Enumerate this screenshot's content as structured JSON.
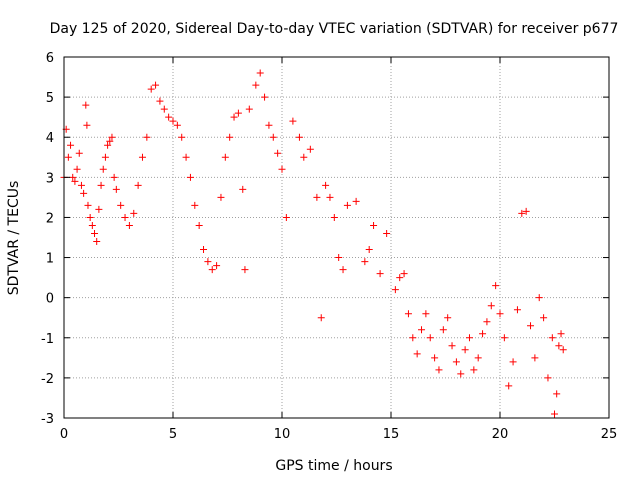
{
  "chart_data": {
    "type": "scatter",
    "title": "Day 125 of 2020, Sidereal Day-to-day VTEC variation (SDTVAR) for receiver p677",
    "xlabel": "GPS time / hours",
    "ylabel": "SDTVAR / TECUs",
    "xlim": [
      0,
      25
    ],
    "ylim": [
      -3,
      6
    ],
    "xticks": [
      0,
      5,
      10,
      15,
      20,
      25
    ],
    "yticks": [
      -3,
      -2,
      -1,
      0,
      1,
      2,
      3,
      4,
      5,
      6
    ],
    "grid": true,
    "marker": "plus",
    "color": "#ff0000",
    "series": [
      {
        "name": "p677",
        "points": [
          [
            0.0,
            3.0
          ],
          [
            0.1,
            4.2
          ],
          [
            0.2,
            3.5
          ],
          [
            0.3,
            3.8
          ],
          [
            0.4,
            3.0
          ],
          [
            0.5,
            2.9
          ],
          [
            0.6,
            3.2
          ],
          [
            0.7,
            3.6
          ],
          [
            0.8,
            2.8
          ],
          [
            0.9,
            2.6
          ],
          [
            1.0,
            4.8
          ],
          [
            1.05,
            4.3
          ],
          [
            1.1,
            2.3
          ],
          [
            1.2,
            2.0
          ],
          [
            1.3,
            1.8
          ],
          [
            1.4,
            1.6
          ],
          [
            1.5,
            1.4
          ],
          [
            1.6,
            2.2
          ],
          [
            1.7,
            2.8
          ],
          [
            1.8,
            3.2
          ],
          [
            1.9,
            3.5
          ],
          [
            2.0,
            3.8
          ],
          [
            2.1,
            3.9
          ],
          [
            2.2,
            4.0
          ],
          [
            2.3,
            3.0
          ],
          [
            2.4,
            2.7
          ],
          [
            2.6,
            2.3
          ],
          [
            2.8,
            2.0
          ],
          [
            3.0,
            1.8
          ],
          [
            3.2,
            2.1
          ],
          [
            3.4,
            2.8
          ],
          [
            3.6,
            3.5
          ],
          [
            3.8,
            4.0
          ],
          [
            4.0,
            5.2
          ],
          [
            4.2,
            5.3
          ],
          [
            4.4,
            4.9
          ],
          [
            4.6,
            4.7
          ],
          [
            4.8,
            4.5
          ],
          [
            5.0,
            4.4
          ],
          [
            5.2,
            4.3
          ],
          [
            5.4,
            4.0
          ],
          [
            5.6,
            3.5
          ],
          [
            5.8,
            3.0
          ],
          [
            6.0,
            2.3
          ],
          [
            6.2,
            1.8
          ],
          [
            6.4,
            1.2
          ],
          [
            6.6,
            0.9
          ],
          [
            6.8,
            0.7
          ],
          [
            7.0,
            0.8
          ],
          [
            7.2,
            2.5
          ],
          [
            7.4,
            3.5
          ],
          [
            7.6,
            4.0
          ],
          [
            7.8,
            4.5
          ],
          [
            8.0,
            4.6
          ],
          [
            8.2,
            2.7
          ],
          [
            8.3,
            0.7
          ],
          [
            8.5,
            4.7
          ],
          [
            8.8,
            5.3
          ],
          [
            9.0,
            5.6
          ],
          [
            9.2,
            5.0
          ],
          [
            9.4,
            4.3
          ],
          [
            9.6,
            4.0
          ],
          [
            9.8,
            3.6
          ],
          [
            10.0,
            3.2
          ],
          [
            10.2,
            2.0
          ],
          [
            10.5,
            4.4
          ],
          [
            10.8,
            4.0
          ],
          [
            11.0,
            3.5
          ],
          [
            11.3,
            3.7
          ],
          [
            11.6,
            2.5
          ],
          [
            11.8,
            -0.5
          ],
          [
            12.0,
            2.8
          ],
          [
            12.2,
            2.5
          ],
          [
            12.4,
            2.0
          ],
          [
            12.6,
            1.0
          ],
          [
            12.8,
            0.7
          ],
          [
            13.0,
            2.3
          ],
          [
            13.4,
            2.4
          ],
          [
            13.8,
            0.9
          ],
          [
            14.0,
            1.2
          ],
          [
            14.2,
            1.8
          ],
          [
            14.5,
            0.6
          ],
          [
            14.8,
            1.6
          ],
          [
            15.2,
            0.2
          ],
          [
            15.4,
            0.5
          ],
          [
            15.6,
            0.6
          ],
          [
            15.8,
            -0.4
          ],
          [
            16.0,
            -1.0
          ],
          [
            16.2,
            -1.4
          ],
          [
            16.4,
            -0.8
          ],
          [
            16.6,
            -0.4
          ],
          [
            16.8,
            -1.0
          ],
          [
            17.0,
            -1.5
          ],
          [
            17.2,
            -1.8
          ],
          [
            17.4,
            -0.8
          ],
          [
            17.6,
            -0.5
          ],
          [
            17.8,
            -1.2
          ],
          [
            18.0,
            -1.6
          ],
          [
            18.2,
            -1.9
          ],
          [
            18.4,
            -1.3
          ],
          [
            18.6,
            -1.0
          ],
          [
            18.8,
            -1.8
          ],
          [
            19.0,
            -1.5
          ],
          [
            19.2,
            -0.9
          ],
          [
            19.4,
            -0.6
          ],
          [
            19.6,
            -0.2
          ],
          [
            19.8,
            0.3
          ],
          [
            20.0,
            -0.4
          ],
          [
            20.2,
            -1.0
          ],
          [
            20.4,
            -2.2
          ],
          [
            20.6,
            -1.6
          ],
          [
            20.8,
            -0.3
          ],
          [
            21.0,
            2.1
          ],
          [
            21.2,
            2.15
          ],
          [
            21.4,
            -0.7
          ],
          [
            21.6,
            -1.5
          ],
          [
            21.8,
            0.0
          ],
          [
            22.0,
            -0.5
          ],
          [
            22.2,
            -2.0
          ],
          [
            22.4,
            -1.0
          ],
          [
            22.5,
            -2.9
          ],
          [
            22.6,
            -2.4
          ],
          [
            22.7,
            -1.2
          ],
          [
            22.8,
            -0.9
          ],
          [
            22.9,
            -1.3
          ]
        ]
      }
    ]
  }
}
